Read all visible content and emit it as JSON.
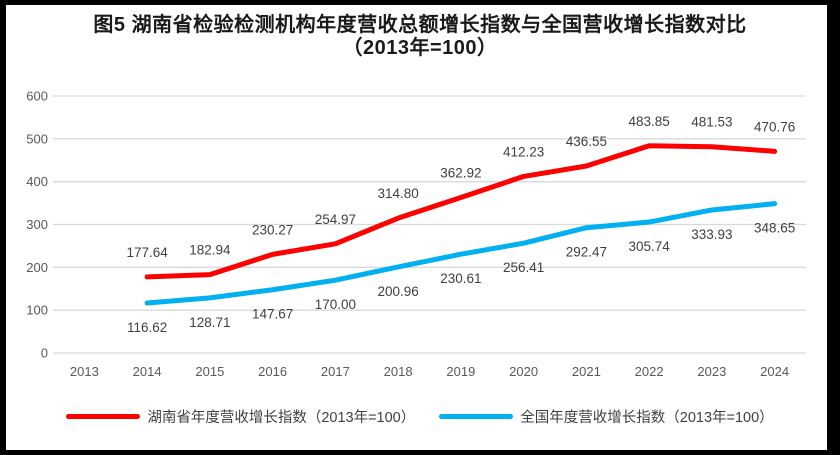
{
  "chart_data": {
    "type": "line",
    "title_line1": "图5 湖南省检验检测机构年度营收总额增长指数与全国营收增长指数对比",
    "title_line2": "（2013年=100）",
    "categories": [
      "2013",
      "2014",
      "2015",
      "2016",
      "2017",
      "2018",
      "2019",
      "2020",
      "2021",
      "2022",
      "2023",
      "2024"
    ],
    "series": [
      {
        "name": "湖南省年度营收增长指数（2013年=100）",
        "color": "#FF0000",
        "label_position": "above",
        "values": [
          null,
          177.64,
          182.94,
          230.27,
          254.97,
          314.8,
          362.92,
          412.23,
          436.55,
          483.85,
          481.53,
          470.76
        ]
      },
      {
        "name": "全国年度营收增长指数（2013年=100）",
        "color": "#00B0F0",
        "label_position": "below",
        "values": [
          null,
          116.62,
          128.71,
          147.67,
          170.0,
          200.96,
          230.61,
          256.41,
          292.47,
          305.74,
          333.93,
          348.65
        ]
      }
    ],
    "y_ticks": [
      0,
      100,
      200,
      300,
      400,
      500,
      600
    ],
    "ylim": [
      0,
      600
    ],
    "grid": true,
    "legend_position": "bottom",
    "xlabel": "",
    "ylabel": "",
    "colors": {
      "gridline": "#D9D9D9",
      "axis_text": "#595959",
      "data_label": "#404040",
      "background": "#FFFFFF",
      "frame_border": "#000000"
    }
  }
}
